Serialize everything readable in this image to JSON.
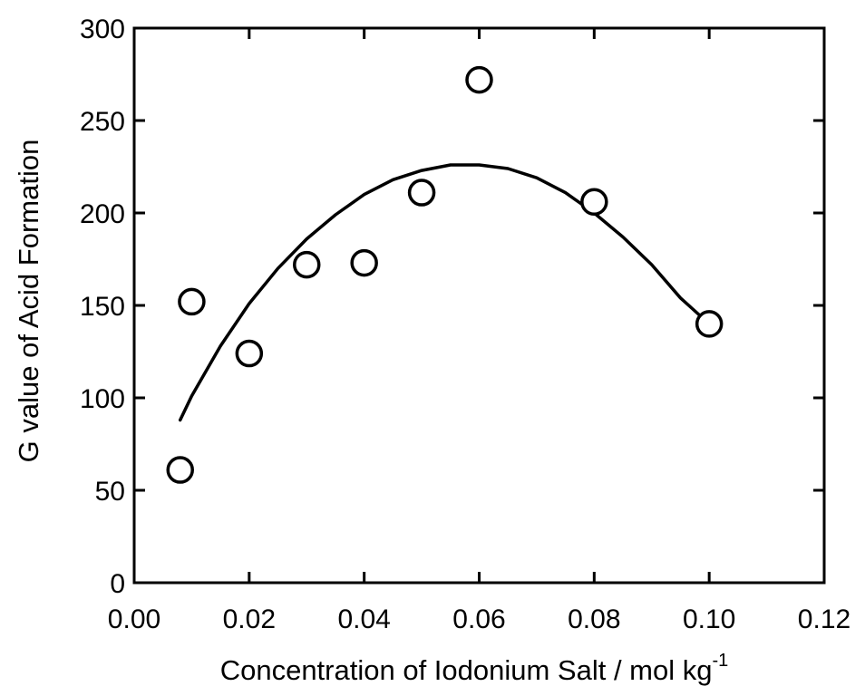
{
  "chart_data": {
    "type": "scatter",
    "title": "",
    "xlabel": "Concentration of Iodonium Salt / mol kg",
    "xlabel_superscript": "-1",
    "ylabel": "G value of Acid Formation",
    "xlim": [
      0.0,
      0.12
    ],
    "ylim": [
      0,
      300
    ],
    "x_ticks": [
      0.0,
      0.02,
      0.04,
      0.06,
      0.08,
      0.1,
      0.12
    ],
    "x_tick_labels": [
      "0.00",
      "0.02",
      "0.04",
      "0.06",
      "0.08",
      "0.10",
      "0.12"
    ],
    "y_ticks": [
      0,
      50,
      100,
      150,
      200,
      250,
      300
    ],
    "y_tick_labels": [
      "0",
      "50",
      "100",
      "150",
      "200",
      "250",
      "300"
    ],
    "grid": false,
    "legend": "none",
    "marker": "open-circle",
    "color": "#000000",
    "points": [
      {
        "x": 0.008,
        "y": 61
      },
      {
        "x": 0.01,
        "y": 152
      },
      {
        "x": 0.02,
        "y": 124
      },
      {
        "x": 0.03,
        "y": 172
      },
      {
        "x": 0.04,
        "y": 173
      },
      {
        "x": 0.05,
        "y": 211
      },
      {
        "x": 0.06,
        "y": 272
      },
      {
        "x": 0.08,
        "y": 206
      },
      {
        "x": 0.1,
        "y": 140
      }
    ],
    "fit_curve": {
      "type": "quadratic",
      "x": [
        0.008,
        0.01,
        0.015,
        0.02,
        0.025,
        0.03,
        0.035,
        0.04,
        0.045,
        0.05,
        0.055,
        0.06,
        0.065,
        0.07,
        0.075,
        0.08,
        0.085,
        0.09,
        0.095,
        0.1
      ],
      "y": [
        88,
        101,
        128,
        151,
        170,
        186,
        199,
        210,
        218,
        223,
        226,
        226,
        224,
        219,
        211,
        200,
        187,
        172,
        154,
        140
      ]
    }
  }
}
